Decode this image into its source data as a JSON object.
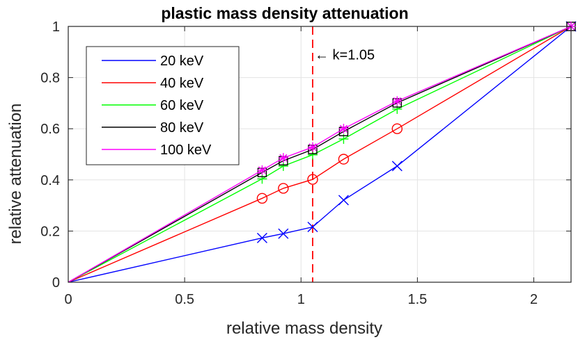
{
  "chart_data": {
    "type": "line",
    "title": "plastic mass density attenuation",
    "xlabel": "relative mass density",
    "ylabel": "relative attenuation",
    "xlim": [
      0,
      2.16
    ],
    "ylim": [
      0,
      1
    ],
    "xticks": [
      0,
      0.5,
      1,
      1.5,
      2
    ],
    "xtick_labels": [
      "0",
      "0.5",
      "1",
      "1.5",
      "2"
    ],
    "yticks": [
      0,
      0.2,
      0.4,
      0.6,
      0.8,
      1
    ],
    "ytick_labels": [
      "0",
      "0.2",
      "0.4",
      "0.6",
      "0.8",
      "1"
    ],
    "grid": true,
    "legend_position": "top-left",
    "series": [
      {
        "name": "20 keV",
        "color": "#0000ff",
        "marker": "x",
        "points": [
          [
            0,
            0
          ],
          [
            0.833,
            0.173
          ],
          [
            0.924,
            0.19
          ],
          [
            1.05,
            0.216
          ],
          [
            1.183,
            0.321
          ],
          [
            1.413,
            0.454
          ],
          [
            2.16,
            1
          ]
        ],
        "marked": [
          1,
          2,
          3,
          4,
          5,
          6
        ]
      },
      {
        "name": "40 keV",
        "color": "#ff0000",
        "marker": "o",
        "points": [
          [
            0,
            0
          ],
          [
            0.833,
            0.328
          ],
          [
            0.924,
            0.367
          ],
          [
            1.05,
            0.402
          ],
          [
            1.183,
            0.481
          ],
          [
            1.413,
            0.6
          ],
          [
            2.16,
            1
          ]
        ],
        "marked": [
          1,
          2,
          3,
          4,
          5
        ]
      },
      {
        "name": "60 keV",
        "color": "#00ff00",
        "marker": "+",
        "points": [
          [
            0,
            0
          ],
          [
            0.833,
            0.404
          ],
          [
            0.924,
            0.454
          ],
          [
            1.05,
            0.498
          ],
          [
            1.183,
            0.56
          ],
          [
            1.413,
            0.677
          ],
          [
            2.16,
            1
          ]
        ],
        "marked": [
          1,
          2,
          3,
          4,
          5,
          6
        ]
      },
      {
        "name": "80 keV",
        "color": "#000000",
        "marker": "s",
        "points": [
          [
            0,
            0
          ],
          [
            0.833,
            0.429
          ],
          [
            0.924,
            0.475
          ],
          [
            1.05,
            0.519
          ],
          [
            1.183,
            0.589
          ],
          [
            1.413,
            0.701
          ],
          [
            2.16,
            1
          ]
        ],
        "marked": [
          1,
          2,
          3,
          4,
          5,
          6
        ]
      },
      {
        "name": "100 keV",
        "color": "#ff00ff",
        "marker": "*",
        "points": [
          [
            0,
            0
          ],
          [
            0.833,
            0.438
          ],
          [
            0.924,
            0.486
          ],
          [
            1.05,
            0.528
          ],
          [
            1.183,
            0.6
          ],
          [
            1.413,
            0.708
          ],
          [
            2.16,
            1
          ]
        ],
        "marked": [
          1,
          2,
          3,
          4,
          5,
          6
        ]
      }
    ],
    "reference_line": {
      "x": 1.05,
      "color": "#ff0000",
      "style": "dashed"
    },
    "annotation": {
      "text": "← k=1.05",
      "x": 1.05,
      "y": 0.89
    }
  }
}
